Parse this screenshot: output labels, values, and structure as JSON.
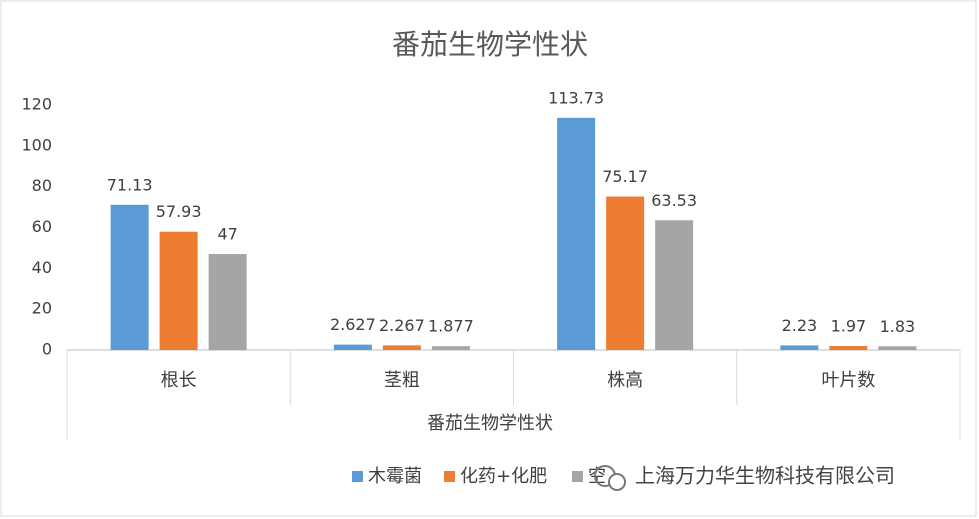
{
  "chart_data": {
    "type": "bar",
    "title": "番茄生物学性状",
    "x_label": "番茄生物学性状",
    "categories": [
      "根长",
      "茎粗",
      "株高",
      "叶片数"
    ],
    "series": [
      {
        "name": "木霉菌",
        "color": "#5b9bd5",
        "values": [
          71.13,
          2.627,
          113.73,
          2.23
        ]
      },
      {
        "name": "化药+化肥",
        "color": "#ed7d31",
        "values": [
          57.93,
          2.267,
          75.17,
          1.97
        ]
      },
      {
        "name": "空",
        "color": "#a5a5a5",
        "values": [
          47,
          1.877,
          63.53,
          1.83
        ]
      }
    ],
    "ylim": [
      0,
      120
    ],
    "yticks": [
      0,
      20,
      40,
      60,
      80,
      100,
      120
    ],
    "grid": false
  },
  "watermark": "上海万力华生物科技有限公司"
}
